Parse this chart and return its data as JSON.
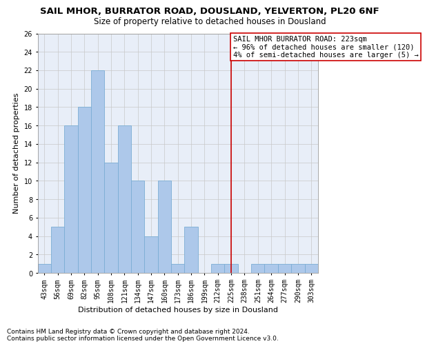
{
  "title1": "SAIL MHOR, BURRATOR ROAD, DOUSLAND, YELVERTON, PL20 6NF",
  "title2": "Size of property relative to detached houses in Dousland",
  "xlabel": "Distribution of detached houses by size in Dousland",
  "ylabel": "Number of detached properties",
  "categories": [
    "43sqm",
    "56sqm",
    "69sqm",
    "82sqm",
    "95sqm",
    "108sqm",
    "121sqm",
    "134sqm",
    "147sqm",
    "160sqm",
    "173sqm",
    "186sqm",
    "199sqm",
    "212sqm",
    "225sqm",
    "238sqm",
    "251sqm",
    "264sqm",
    "277sqm",
    "290sqm",
    "303sqm"
  ],
  "values": [
    1,
    5,
    16,
    18,
    22,
    12,
    16,
    10,
    4,
    10,
    1,
    5,
    0,
    1,
    1,
    0,
    1,
    1,
    1,
    1,
    1
  ],
  "bar_color": "#adc8ea",
  "bar_edge_color": "#7aadd4",
  "grid_color": "#c8c8c8",
  "background_color": "#e8eef8",
  "vline_x_idx": 14,
  "vline_color": "#cc0000",
  "annotation_line1": "SAIL MHOR BURRATOR ROAD: 223sqm",
  "annotation_line2": "← 96% of detached houses are smaller (120)",
  "annotation_line3": "4% of semi-detached houses are larger (5) →",
  "annotation_box_color": "#cc0000",
  "ylim": [
    0,
    26
  ],
  "yticks": [
    0,
    2,
    4,
    6,
    8,
    10,
    12,
    14,
    16,
    18,
    20,
    22,
    24,
    26
  ],
  "footer1": "Contains HM Land Registry data © Crown copyright and database right 2024.",
  "footer2": "Contains public sector information licensed under the Open Government Licence v3.0.",
  "title1_fontsize": 9.5,
  "title2_fontsize": 8.5,
  "xlabel_fontsize": 8,
  "ylabel_fontsize": 8,
  "tick_fontsize": 7,
  "annotation_fontsize": 7.5,
  "footer_fontsize": 6.5
}
